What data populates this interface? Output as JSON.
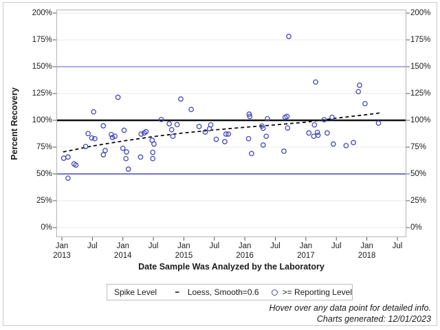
{
  "chart_data": {
    "type": "scatter",
    "xlabel": "Date Sample Was Analyzed by the Laboratory",
    "ylabel": "Percent Recovery",
    "x_axis": {
      "ticks": [
        2013.0,
        2013.5,
        2014.0,
        2014.5,
        2015.0,
        2015.5,
        2016.0,
        2016.5,
        2017.0,
        2017.5,
        2018.0,
        2018.5
      ],
      "tick_labels": [
        "Jan|2013",
        "Jul",
        "Jan|2014",
        "Jul",
        "Jan|2015",
        "Jul",
        "Jan|2016",
        "Jul",
        "Jan|2017",
        "Jul",
        "Jan|2018",
        "Jul"
      ],
      "grid": false
    },
    "y_axis": {
      "ticks": [
        0,
        25,
        50,
        75,
        100,
        125,
        150,
        175,
        200
      ],
      "tick_labels": [
        "0%",
        "25%",
        "50%",
        "75%",
        "100%",
        "125%",
        "150%",
        "175%",
        "200%"
      ],
      "grid": true,
      "mirrored_labels": true
    },
    "reference_lines": [
      {
        "value": 150,
        "color": "#8f91d8",
        "width": 1.6
      },
      {
        "value": 50,
        "color": "#4649b8",
        "width": 1.6
      },
      {
        "value": 100,
        "color": "#111111",
        "width": 2.6
      }
    ],
    "legend": {
      "title": "Spike Level",
      "position": "bottom"
    },
    "series": [
      {
        "name": ">= Reporting Level",
        "type": "scatter",
        "marker": "open-circle",
        "color": "#4347bb",
        "points": [
          [
            2013.03,
            64.7
          ],
          [
            2013.1,
            65.8
          ],
          [
            2013.1,
            46.0
          ],
          [
            2013.2,
            59.4
          ],
          [
            2013.23,
            58.3
          ],
          [
            2013.39,
            75.6
          ],
          [
            2013.43,
            87.6
          ],
          [
            2013.49,
            83.5
          ],
          [
            2013.52,
            107.9
          ],
          [
            2013.54,
            82.9
          ],
          [
            2013.68,
            94.9
          ],
          [
            2013.68,
            67.9
          ],
          [
            2013.71,
            71.8
          ],
          [
            2013.81,
            86.7
          ],
          [
            2013.83,
            84.0
          ],
          [
            2013.87,
            85.1
          ],
          [
            2013.92,
            121.5
          ],
          [
            2014.0,
            73.9
          ],
          [
            2014.02,
            90.7
          ],
          [
            2014.05,
            64.3
          ],
          [
            2014.06,
            70.5
          ],
          [
            2014.09,
            54.5
          ],
          [
            2014.29,
            65.8
          ],
          [
            2014.3,
            87.2
          ],
          [
            2014.35,
            88.2
          ],
          [
            2014.38,
            89.4
          ],
          [
            2014.48,
            81.4
          ],
          [
            2014.49,
            70.1
          ],
          [
            2014.49,
            64.3
          ],
          [
            2014.51,
            77.9
          ],
          [
            2014.63,
            100.8
          ],
          [
            2014.76,
            96.8
          ],
          [
            2014.8,
            91.2
          ],
          [
            2014.82,
            85.1
          ],
          [
            2014.89,
            96.0
          ],
          [
            2014.95,
            119.9
          ],
          [
            2015.12,
            110.1
          ],
          [
            2015.25,
            94.2
          ],
          [
            2015.35,
            89.1
          ],
          [
            2015.42,
            92.1
          ],
          [
            2015.44,
            95.7
          ],
          [
            2015.53,
            82.3
          ],
          [
            2015.67,
            80.1
          ],
          [
            2015.69,
            87.2
          ],
          [
            2015.73,
            87.2
          ],
          [
            2016.06,
            82.9
          ],
          [
            2016.07,
            105.8
          ],
          [
            2016.08,
            103.6
          ],
          [
            2016.11,
            69.0
          ],
          [
            2016.28,
            94.7
          ],
          [
            2016.3,
            92.5
          ],
          [
            2016.3,
            76.9
          ],
          [
            2016.35,
            85.1
          ],
          [
            2016.37,
            101.5
          ],
          [
            2016.64,
            71.2
          ],
          [
            2016.66,
            102.8
          ],
          [
            2016.69,
            103.6
          ],
          [
            2016.7,
            92.9
          ],
          [
            2016.72,
            178.2
          ],
          [
            2017.05,
            88.2
          ],
          [
            2017.13,
            85.1
          ],
          [
            2017.14,
            95.7
          ],
          [
            2017.16,
            135.7
          ],
          [
            2017.19,
            88.7
          ],
          [
            2017.2,
            86.1
          ],
          [
            2017.3,
            100.6
          ],
          [
            2017.35,
            88.2
          ],
          [
            2017.43,
            102.8
          ],
          [
            2017.45,
            77.9
          ],
          [
            2017.66,
            76.4
          ],
          [
            2017.78,
            79.2
          ],
          [
            2017.86,
            126.7
          ],
          [
            2017.88,
            132.7
          ],
          [
            2017.97,
            115.6
          ],
          [
            2018.19,
            97.4
          ]
        ]
      },
      {
        "name": "Loess, Smooth=0.6",
        "type": "line",
        "dashed": true,
        "color": "#0a0a0a",
        "points": [
          [
            2013.02,
            70.5
          ],
          [
            2013.5,
            76.0
          ],
          [
            2014.0,
            80.7
          ],
          [
            2014.5,
            84.8
          ],
          [
            2015.0,
            88.3
          ],
          [
            2015.5,
            91.0
          ],
          [
            2016.0,
            93.5
          ],
          [
            2016.5,
            95.8
          ],
          [
            2017.0,
            98.3
          ],
          [
            2017.5,
            102.0
          ],
          [
            2018.0,
            105.3
          ],
          [
            2018.23,
            107.0
          ]
        ]
      }
    ]
  },
  "footer": {
    "line1": "Hover over any data point for detailed info.",
    "line2": "Charts generated: 12/01/2023"
  }
}
